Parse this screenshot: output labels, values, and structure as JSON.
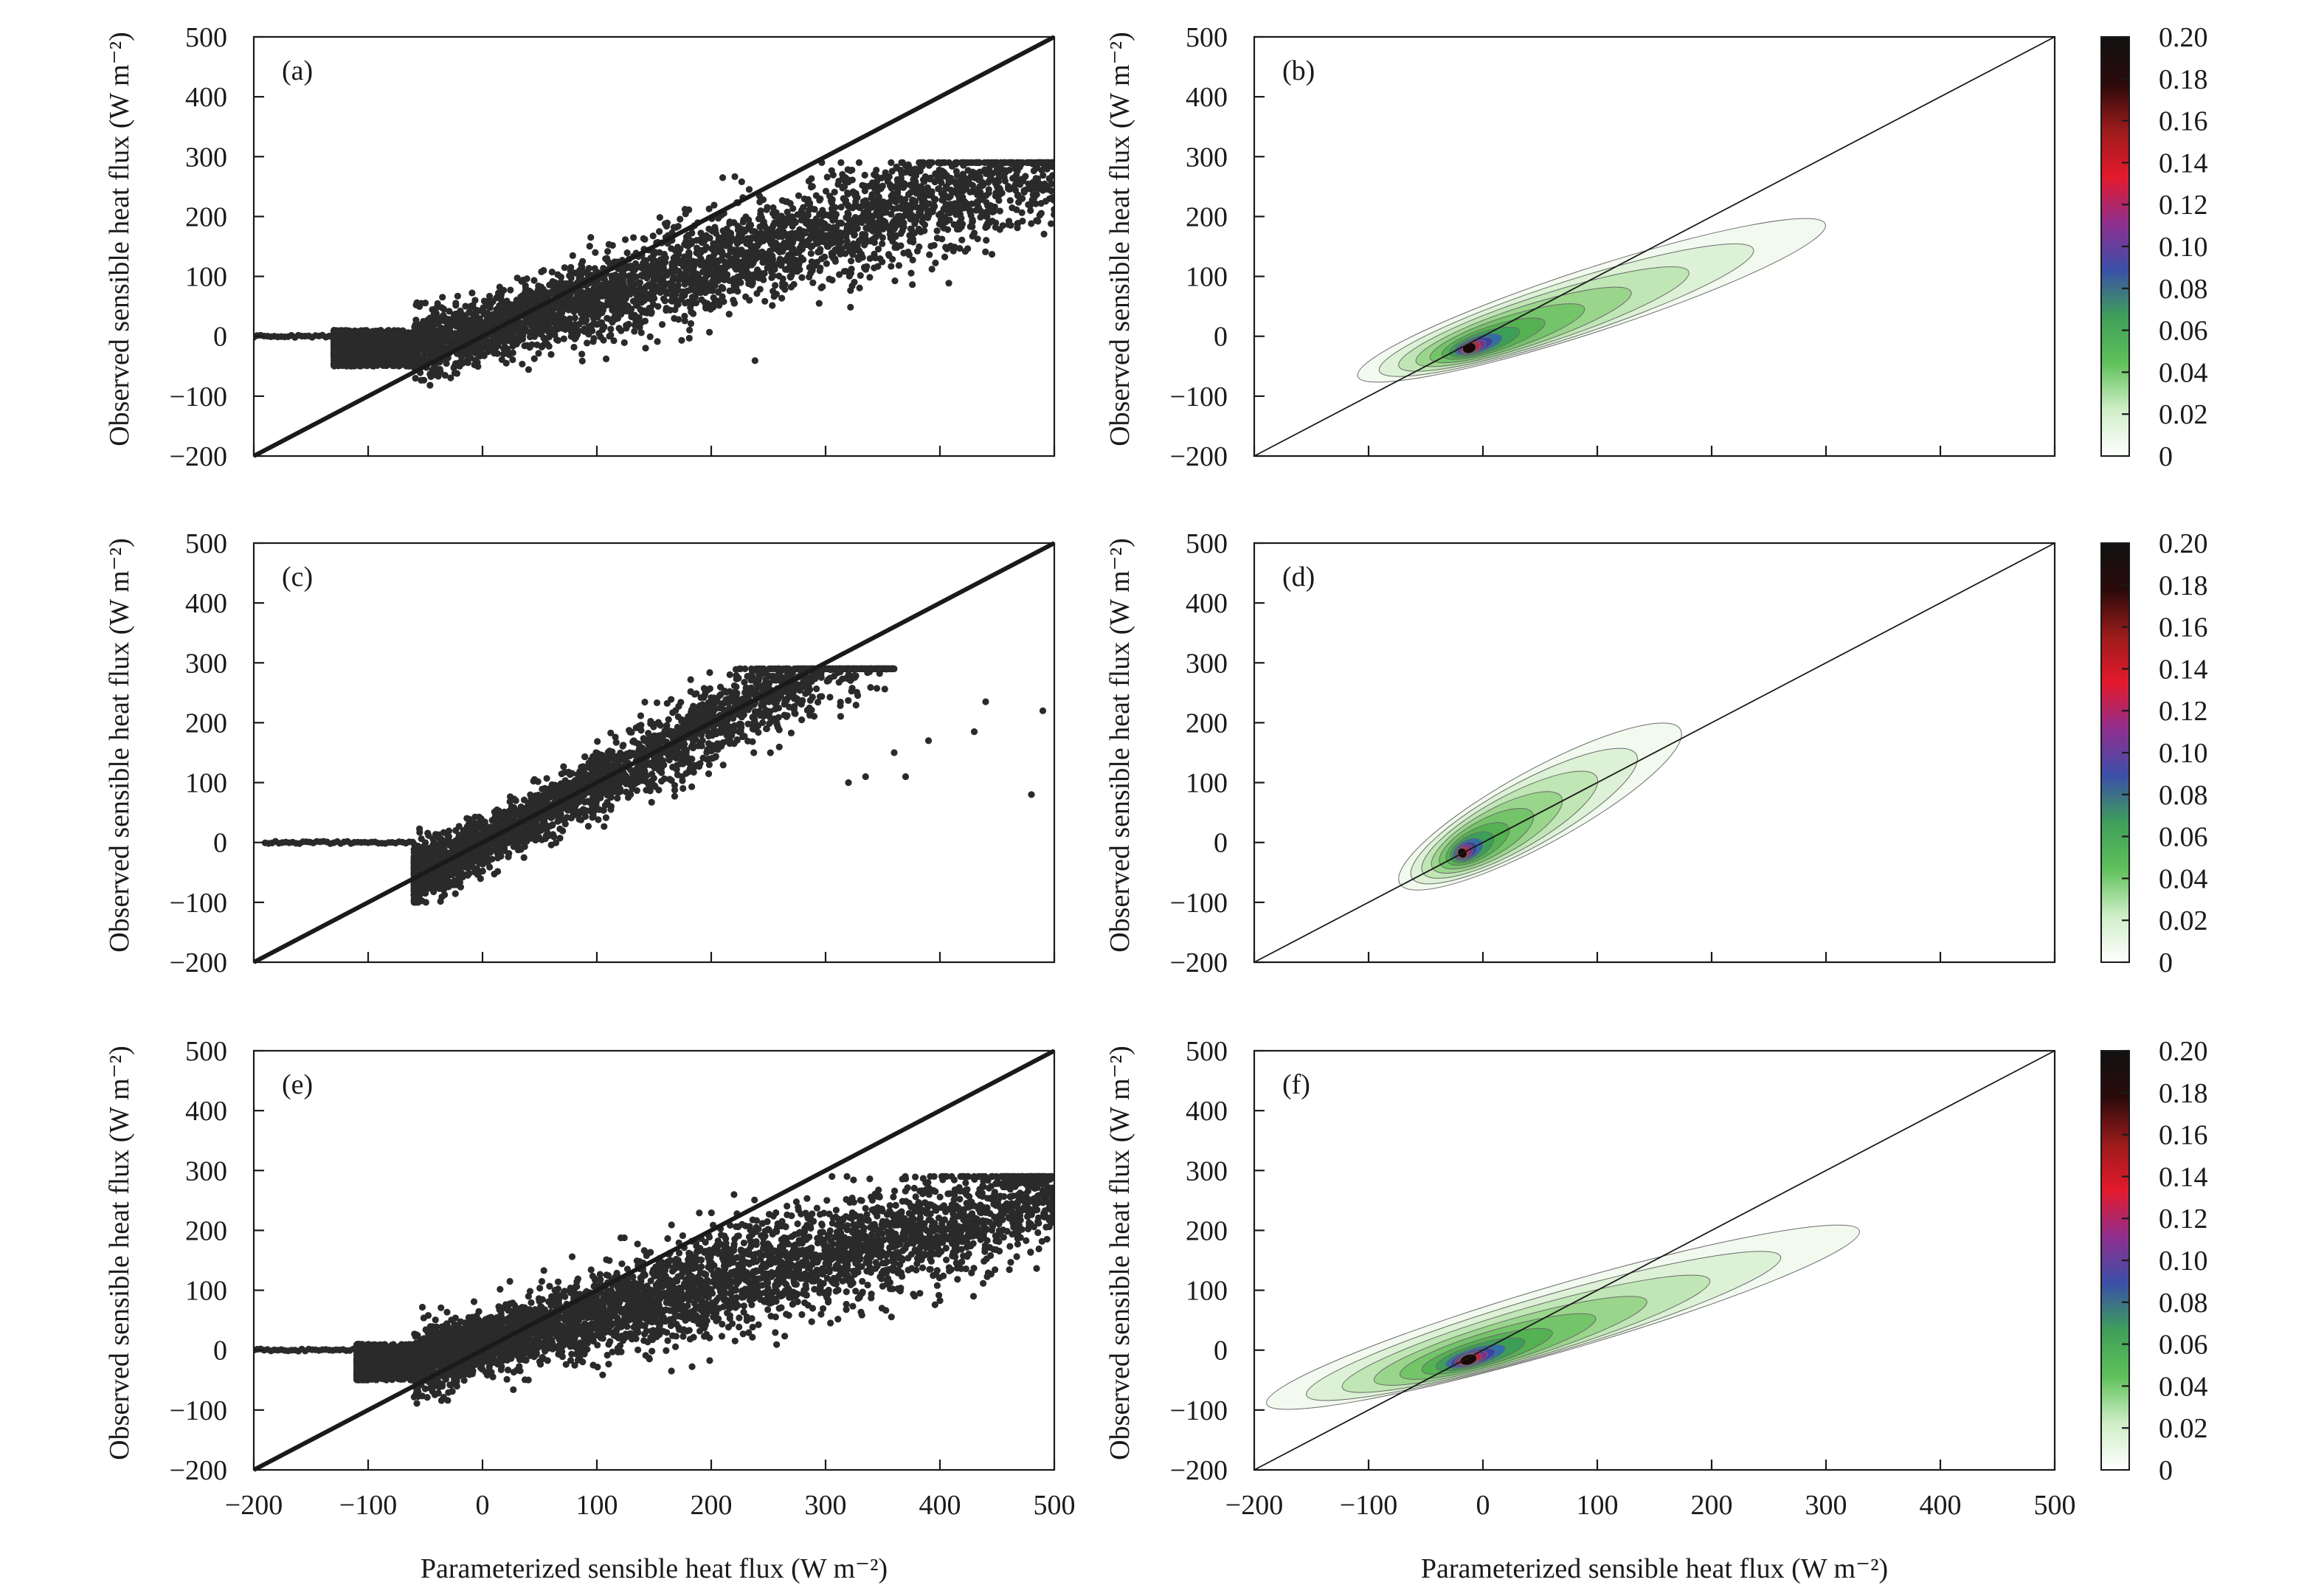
{
  "figure": {
    "xlabel": "Parameterized sensible heat flux (W m⁻²)",
    "ylabel": "Observed sensible heat flux (W m⁻²)",
    "axis_ticks": [
      "−200",
      "−100",
      "0",
      "100",
      "200",
      "300",
      "400",
      "500"
    ],
    "colorbar_ticks": [
      "0",
      "0.02",
      "0.04",
      "0.06",
      "0.08",
      "0.10",
      "0.12",
      "0.14",
      "0.16",
      "0.18",
      "0.20"
    ],
    "colorbar_colors": [
      "#ffffff",
      "#cfeec7",
      "#5fc15a",
      "#3f9f5a",
      "#3b50a8",
      "#8f2f8f",
      "#e41a2c",
      "#9b1b1b",
      "#2a0a0a",
      "#111111"
    ]
  },
  "chart_data": [
    {
      "panel": "(a)",
      "type": "scatter",
      "xlim": [
        -200,
        500
      ],
      "ylim": [
        -200,
        500
      ],
      "reference_line": "1:1",
      "cloud": {
        "x_range": [
          -130,
          500
        ],
        "y_range": [
          -100,
          290
        ],
        "slope": 0.55,
        "intercept": 10,
        "spread": 45,
        "n_points": 4500
      },
      "zero_flux_points": {
        "x_range": [
          -200,
          -60
        ],
        "y": 0
      }
    },
    {
      "panel": "(b)",
      "type": "heatmap",
      "xlim": [
        -200,
        500
      ],
      "ylim": [
        -200,
        500
      ],
      "reference_line": "1:1",
      "density_peak": [
        -15,
        -22
      ],
      "density_max": 0.2,
      "extent_x": [
        -120,
        310
      ],
      "extent_y": [
        -60,
        180
      ]
    },
    {
      "panel": "(c)",
      "type": "scatter",
      "xlim": [
        -200,
        500
      ],
      "ylim": [
        -200,
        500
      ],
      "reference_line": "1:1",
      "cloud": {
        "x_range": [
          -60,
          360
        ],
        "y_range": [
          -100,
          290
        ],
        "slope": 1.0,
        "intercept": 0,
        "spread": 35,
        "n_points": 3000
      },
      "zero_flux_points": {
        "x_range": [
          -190,
          -60
        ],
        "y": 0
      },
      "outliers": [
        [
          490,
          220
        ],
        [
          480,
          80
        ],
        [
          440,
          235
        ],
        [
          430,
          185
        ],
        [
          390,
          170
        ],
        [
          370,
          110
        ],
        [
          360,
          150
        ],
        [
          335,
          110
        ],
        [
          320,
          100
        ]
      ]
    },
    {
      "panel": "(d)",
      "type": "heatmap",
      "xlim": [
        -200,
        500
      ],
      "ylim": [
        -200,
        500
      ],
      "reference_line": "1:1",
      "density_peak": [
        -20,
        -20
      ],
      "density_max": 0.2,
      "extent_x": [
        -90,
        190
      ],
      "extent_y": [
        -80,
        200
      ]
    },
    {
      "panel": "(e)",
      "type": "scatter",
      "xlim": [
        -200,
        500
      ],
      "ylim": [
        -200,
        500
      ],
      "reference_line": "1:1",
      "cloud": {
        "x_range": [
          -110,
          500
        ],
        "y_range": [
          -100,
          290
        ],
        "slope": 0.5,
        "intercept": 10,
        "spread": 45,
        "n_points": 5000
      },
      "zero_flux_points": {
        "x_range": [
          -200,
          -60
        ],
        "y": 0
      }
    },
    {
      "panel": "(f)",
      "type": "heatmap",
      "xlim": [
        -200,
        500
      ],
      "ylim": [
        -200,
        500
      ],
      "reference_line": "1:1",
      "density_peak": [
        -15,
        -18
      ],
      "density_max": 0.2,
      "extent_x": [
        -200,
        340
      ],
      "extent_y": [
        -70,
        180
      ]
    }
  ]
}
